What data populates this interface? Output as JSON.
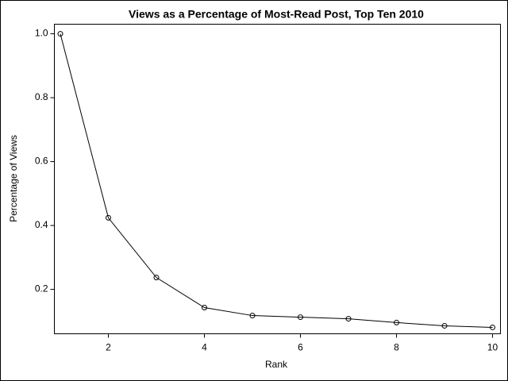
{
  "chart_data": {
    "type": "line",
    "title": "Views as a Percentage of Most-Read Post, Top Ten 2010",
    "x_label": "Rank",
    "y_label": "Percentage of Views",
    "x": [
      1,
      2,
      3,
      4,
      5,
      6,
      7,
      8,
      9,
      10
    ],
    "values": [
      1.0,
      0.424,
      0.237,
      0.143,
      0.118,
      0.113,
      0.108,
      0.096,
      0.086,
      0.081
    ],
    "color": "#000000",
    "xlim": [
      0.876,
      10.165
    ],
    "ylim": [
      0.061,
      1.03
    ],
    "xticks": [
      2,
      4,
      6,
      8,
      10
    ],
    "yticks": [
      0.2,
      0.4,
      0.6,
      0.8,
      {
        "value": 1,
        "label": "1.0"
      }
    ]
  }
}
